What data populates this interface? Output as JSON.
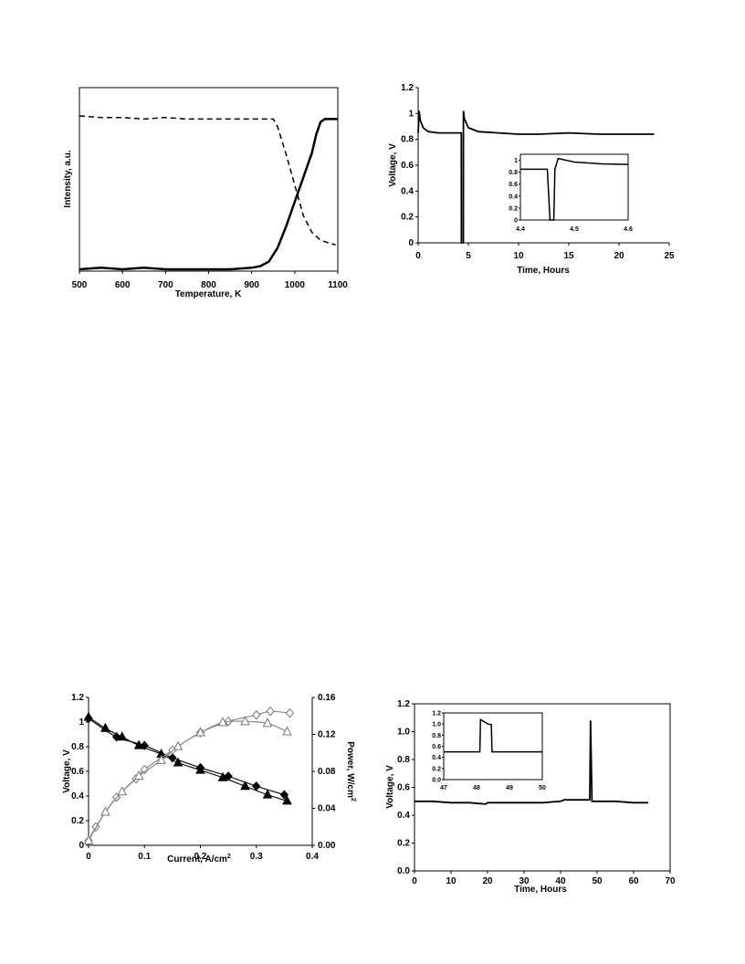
{
  "chart_data": [
    {
      "type": "line",
      "title": "",
      "xlabel": "Temperature, K",
      "ylabel": "Intensity, a.u.",
      "xlim": [
        500,
        1100
      ],
      "ylim": [
        0,
        1
      ],
      "x_ticks": [
        "500",
        "600",
        "700",
        "800",
        "900",
        "1000",
        "1100"
      ],
      "y_ticks": [],
      "grid": false,
      "series": [
        {
          "style": "dashed",
          "x": [
            500,
            550,
            600,
            650,
            700,
            750,
            800,
            850,
            900,
            950,
            960,
            980,
            1000,
            1020,
            1040,
            1060,
            1080,
            1095
          ],
          "y": [
            1.0,
            0.99,
            0.99,
            0.98,
            0.99,
            0.98,
            0.98,
            0.98,
            0.98,
            0.98,
            0.93,
            0.75,
            0.55,
            0.35,
            0.24,
            0.19,
            0.17,
            0.16
          ]
        },
        {
          "style": "solid",
          "x": [
            500,
            550,
            600,
            650,
            700,
            750,
            800,
            850,
            900,
            920,
            940,
            960,
            980,
            1000,
            1020,
            1040,
            1050,
            1060,
            1070,
            1080,
            1100
          ],
          "y": [
            0.0,
            0.01,
            0.0,
            0.01,
            0.0,
            0.0,
            0.0,
            0.0,
            0.01,
            0.02,
            0.05,
            0.14,
            0.28,
            0.44,
            0.6,
            0.76,
            0.88,
            0.96,
            0.98,
            0.98,
            0.98
          ]
        }
      ]
    },
    {
      "type": "line",
      "title": "",
      "xlabel": "Time, Hours",
      "ylabel": "Voltage, V",
      "xlim": [
        0,
        25
      ],
      "ylim": [
        0,
        1.2
      ],
      "x_ticks": [
        "0",
        "5",
        "10",
        "15",
        "20",
        "25"
      ],
      "y_ticks": [
        "0",
        "0.2",
        "0.4",
        "0.6",
        "0.8",
        "1",
        "1.2"
      ],
      "grid": false,
      "series": [
        {
          "x": [
            0,
            0.1,
            0.2,
            0.5,
            1,
            2,
            3,
            4,
            4.3,
            4.31,
            4.5,
            4.51,
            4.6,
            5,
            6,
            8,
            10,
            12,
            15,
            18,
            20,
            22,
            23.5
          ],
          "y": [
            0.85,
            1.02,
            0.95,
            0.89,
            0.86,
            0.85,
            0.85,
            0.85,
            0.85,
            0,
            0,
            1.02,
            0.96,
            0.89,
            0.86,
            0.85,
            0.84,
            0.84,
            0.85,
            0.84,
            0.84,
            0.84,
            0.84
          ]
        }
      ],
      "inset": {
        "xlim": [
          4.4,
          4.6
        ],
        "ylim": [
          0,
          1.1
        ],
        "x_ticks": [
          "4.4",
          "4.5",
          "4.6"
        ],
        "y_ticks": [
          "0",
          "0.2",
          "0.4",
          "0.6",
          "0.8",
          "1"
        ],
        "x": [
          4.4,
          4.43,
          4.45,
          4.455,
          4.462,
          4.464,
          4.47,
          4.5,
          4.55,
          4.6
        ],
        "y": [
          0.85,
          0.85,
          0.85,
          0,
          0,
          0.85,
          1.03,
          0.97,
          0.94,
          0.93
        ]
      }
    },
    {
      "type": "line",
      "title": "",
      "xlabel": "Current, A/cm²",
      "ylabel": "Voltage, V",
      "y2label": "Power, W/cm²",
      "xlim": [
        0,
        0.4
      ],
      "ylim": [
        0,
        1.2
      ],
      "y2lim": [
        0,
        0.16
      ],
      "x_ticks": [
        "0",
        "0.1",
        "0.2",
        "0.3",
        "0.4"
      ],
      "y_ticks": [
        "0",
        "0.2",
        "0.4",
        "0.6",
        "0.8",
        "1",
        "1.2"
      ],
      "y2_ticks": [
        "0.00",
        "0.04",
        "0.08",
        "0.12",
        "0.16"
      ],
      "grid": false,
      "series": [
        {
          "marker": "filled-diamond",
          "axis": "left",
          "x": [
            0,
            0.05,
            0.1,
            0.15,
            0.2,
            0.25,
            0.3,
            0.35
          ],
          "y": [
            1.03,
            0.88,
            0.81,
            0.71,
            0.63,
            0.56,
            0.48,
            0.41
          ]
        },
        {
          "marker": "filled-triangle",
          "axis": "left",
          "x": [
            0,
            0.03,
            0.06,
            0.09,
            0.13,
            0.16,
            0.2,
            0.24,
            0.28,
            0.32,
            0.355
          ],
          "y": [
            1.04,
            0.95,
            0.88,
            0.81,
            0.74,
            0.67,
            0.61,
            0.55,
            0.48,
            0.41,
            0.36
          ]
        },
        {
          "marker": "open-diamond",
          "axis": "right",
          "x": [
            0,
            0.013,
            0.05,
            0.085,
            0.1,
            0.15,
            0.2,
            0.25,
            0.3,
            0.325,
            0.36
          ],
          "y": [
            0.005,
            0.02,
            0.052,
            0.072,
            0.082,
            0.103,
            0.122,
            0.134,
            0.141,
            0.145,
            0.143
          ]
        },
        {
          "marker": "open-triangle",
          "axis": "right",
          "x": [
            0,
            0.03,
            0.06,
            0.09,
            0.13,
            0.16,
            0.2,
            0.24,
            0.28,
            0.32,
            0.355
          ],
          "y": [
            0.005,
            0.036,
            0.058,
            0.075,
            0.092,
            0.107,
            0.122,
            0.133,
            0.134,
            0.132,
            0.123
          ]
        }
      ]
    },
    {
      "type": "line",
      "title": "",
      "xlabel": "Time, Hours",
      "ylabel": "Voltage, V",
      "xlim": [
        0,
        70
      ],
      "ylim": [
        0,
        1.2
      ],
      "x_ticks": [
        "0",
        "10",
        "20",
        "30",
        "40",
        "50",
        "60",
        "70"
      ],
      "y_ticks": [
        "0.0",
        "0.2",
        "0.4",
        "0.6",
        "0.8",
        "1.0",
        "1.2"
      ],
      "grid": false,
      "series": [
        {
          "x": [
            0,
            5,
            10,
            15,
            19.5,
            20,
            25,
            30,
            35,
            40,
            41,
            45,
            48,
            48.2,
            48.6,
            48.8,
            50,
            55,
            60,
            64
          ],
          "y": [
            0.5,
            0.5,
            0.49,
            0.49,
            0.48,
            0.49,
            0.49,
            0.49,
            0.49,
            0.5,
            0.51,
            0.51,
            0.51,
            1.08,
            0.5,
            0.5,
            0.5,
            0.5,
            0.49,
            0.49
          ]
        }
      ],
      "inset": {
        "xlim": [
          47,
          50
        ],
        "ylim": [
          0,
          1.2
        ],
        "x_ticks": [
          "47",
          "48",
          "49",
          "50"
        ],
        "y_ticks": [
          "0.0",
          "0.2",
          "0.4",
          "0.6",
          "0.8",
          "1.0",
          "1.2"
        ],
        "x": [
          47,
          48.1,
          48.12,
          48.3,
          48.35,
          48.45,
          48.47,
          50
        ],
        "y": [
          0.5,
          0.5,
          1.08,
          1.02,
          1.0,
          0.99,
          0.5,
          0.5
        ]
      }
    }
  ]
}
